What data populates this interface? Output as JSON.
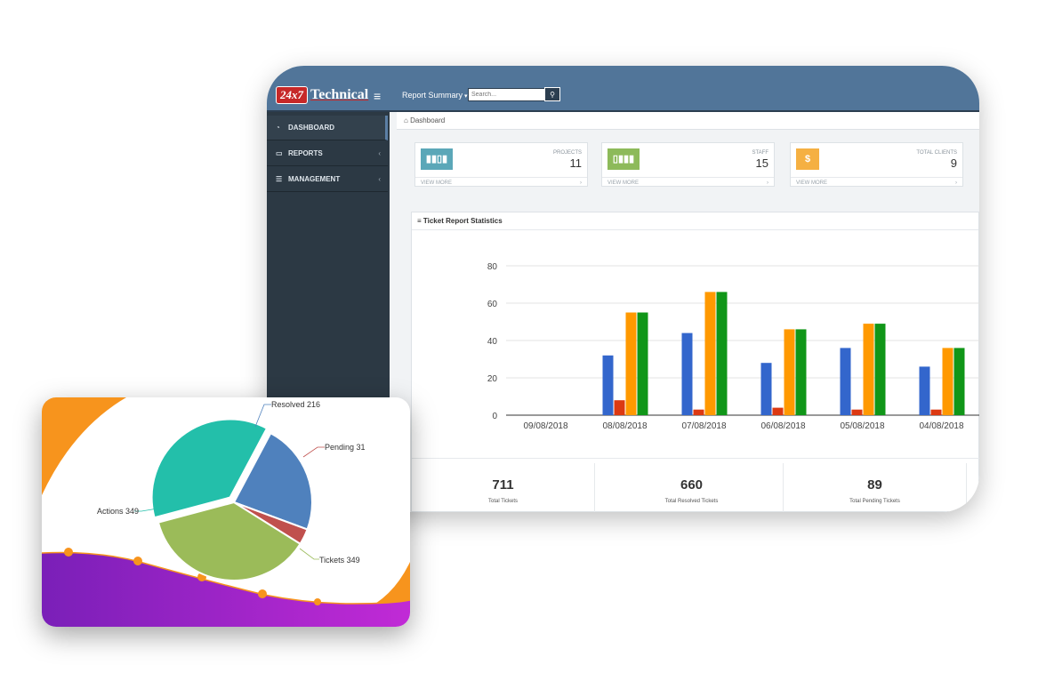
{
  "header": {
    "logo_badge": "24x7",
    "logo_text": "Technical",
    "menu_icon": "hamburger-icon",
    "report_summary": "Report Summary",
    "search_placeholder": "Search...",
    "search_icon": "search-icon"
  },
  "sidebar": {
    "items": [
      {
        "label": "DASHBOARD",
        "icon": "dashboard-icon"
      },
      {
        "label": "REPORTS",
        "icon": "monitor-icon"
      },
      {
        "label": "MANAGEMENT",
        "icon": "list-icon"
      }
    ]
  },
  "breadcrumb": "Dashboard",
  "stats": [
    {
      "label": "PROJECTS",
      "value": "11",
      "more": "VIEW MORE",
      "color": "#5ba7b8",
      "icon": "bar-chart-icon"
    },
    {
      "label": "STAFF",
      "value": "15",
      "more": "VIEW MORE",
      "color": "#8dba5a",
      "icon": "bar-chart-icon"
    },
    {
      "label": "TOTAL CLIENTS",
      "value": "9",
      "more": "VIEW MORE",
      "color": "#f5b042",
      "icon_text": "$"
    }
  ],
  "chart_title": "Ticket Report Statistics",
  "chart_data": [
    {
      "type": "bar",
      "title": "",
      "categories": [
        "09/08/2018",
        "08/08/2018",
        "07/08/2018",
        "06/08/2018",
        "05/08/2018",
        "04/08/2018"
      ],
      "series": [
        {
          "values": [
            0,
            32,
            44,
            28,
            36,
            26
          ],
          "color": "#3366cc"
        },
        {
          "values": [
            0,
            8,
            3,
            4,
            3,
            3
          ],
          "color": "#dc3912"
        },
        {
          "values": [
            0,
            55,
            66,
            46,
            49,
            36
          ],
          "color": "#ff9900"
        },
        {
          "values": [
            0,
            55,
            66,
            46,
            49,
            36
          ],
          "color": "#109618"
        }
      ],
      "yticks": [
        0,
        20,
        40,
        60,
        80
      ],
      "ylim": [
        0,
        80
      ],
      "grid": true
    },
    {
      "type": "pie",
      "slices": [
        {
          "label": "Resolved",
          "value": 216,
          "color": "#4f81bd"
        },
        {
          "label": "Pending",
          "value": 31,
          "color": "#c0504d"
        },
        {
          "label": "Tickets",
          "value": 349,
          "color": "#9bbb59"
        },
        {
          "label": "Actions",
          "value": 349,
          "color": "#23bfaa"
        }
      ]
    }
  ],
  "totals": [
    {
      "value": "711",
      "caption": "Total Tickets"
    },
    {
      "value": "660",
      "caption": "Total Resolved Tickets"
    },
    {
      "value": "89",
      "caption": "Total Pending Tickets"
    }
  ],
  "pie_labels": {
    "resolved": "Resolved 216",
    "pending": "Pending 31",
    "tickets": "Tickets 349",
    "actions": "Actions 349"
  },
  "colors": {
    "header": "#517599",
    "sidebar": "#2c3944",
    "wave_purple": "#8a22c9",
    "wave_orange": "#f7941d"
  }
}
